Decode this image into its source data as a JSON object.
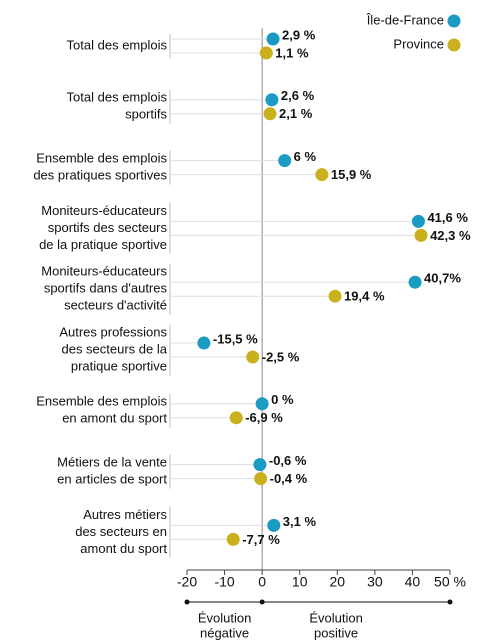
{
  "chart_data": {
    "type": "dot",
    "categories": [
      [
        "Total des emplois"
      ],
      [
        "Total des emplois",
        "sportifs"
      ],
      [
        "Ensemble des emplois",
        "des pratiques sportives"
      ],
      [
        "Moniteurs-éducateurs",
        "sportifs des secteurs",
        "de la pratique sportive"
      ],
      [
        "Moniteurs-éducateurs",
        "sportifs dans d'autres",
        "secteurs d'activité"
      ],
      [
        "Autres professions",
        "des secteurs de la",
        "pratique sportive"
      ],
      [
        "Ensemble des emplois",
        "en amont du sport"
      ],
      [
        "Métiers de la vente",
        "en articles de sport"
      ],
      [
        "Autres métiers",
        "des secteurs en",
        "amont du sport"
      ]
    ],
    "series": [
      {
        "name": "Île-de-France",
        "color": "#1a9bc4",
        "values": [
          2.9,
          2.6,
          6,
          41.6,
          40.7,
          -15.5,
          0,
          -0.6,
          3.1
        ],
        "value_labels": [
          "2,9 %",
          "2,6 %",
          "6 %",
          "41,6 %",
          "40,7%",
          "-15,5 %",
          "0 %",
          "-0,6 %",
          "3,1 %"
        ]
      },
      {
        "name": "Province",
        "color": "#c9b01c",
        "values": [
          1.1,
          2.1,
          15.9,
          42.3,
          19.4,
          -2.5,
          -6.9,
          -0.4,
          -7.7
        ],
        "value_labels": [
          "1,1 %",
          "2,1 %",
          "15,9 %",
          "42,3 %",
          "19,4 %",
          "-2,5 %",
          "-6,9 %",
          "-0,4 %",
          "-7,7 %"
        ]
      }
    ],
    "xlim": [
      -20,
      50
    ],
    "xticks": [
      -20,
      -10,
      0,
      10,
      20,
      30,
      40,
      {
        "value": 50,
        "label": "50 %"
      }
    ],
    "annotations": [
      [
        "Évolution",
        "négative"
      ],
      [
        "Évolution",
        "positive"
      ]
    ]
  }
}
